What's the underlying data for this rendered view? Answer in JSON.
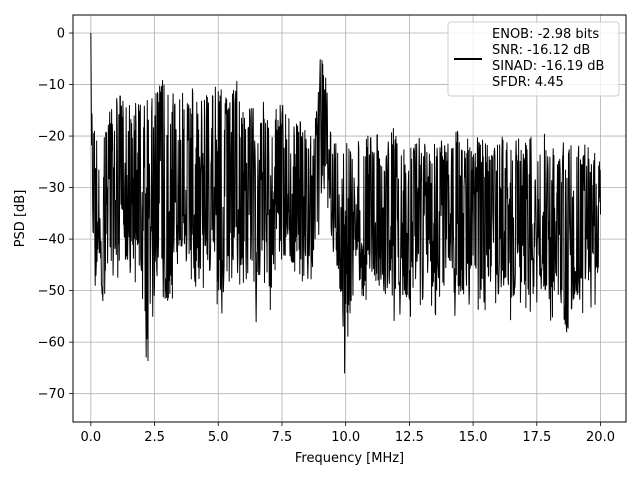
{
  "chart_data": {
    "type": "line",
    "xlabel": "Frequency [MHz]",
    "ylabel": "PSD [dB]",
    "xlim": [
      -0.7,
      21.0
    ],
    "ylim": [
      -75.5,
      3.5
    ],
    "x_ticks": [
      0.0,
      2.5,
      5.0,
      7.5,
      10.0,
      12.5,
      15.0,
      17.5,
      20.0
    ],
    "x_tick_labels": [
      "0.0",
      "2.5",
      "5.0",
      "7.5",
      "10.0",
      "12.5",
      "15.0",
      "17.5",
      "20.0"
    ],
    "y_ticks": [
      0,
      -10,
      -20,
      -30,
      -40,
      -50,
      -60,
      -70
    ],
    "y_tick_labels": [
      "0",
      "−10",
      "−20",
      "−30",
      "−40",
      "−50",
      "−60",
      "−70"
    ],
    "grid": true,
    "legend_position": "top-right",
    "line_color": "#000000",
    "legend": {
      "lines": [
        "ENOB: -2.98 bits",
        "SNR: -16.12 dB",
        "SINAD: -16.19 dB",
        "SFDR: 4.45"
      ]
    },
    "series": [
      {
        "x": [
          0.0,
          0.02,
          0.05,
          0.1,
          0.15,
          0.25,
          0.35,
          0.5,
          0.75,
          1.0,
          1.25,
          1.5,
          1.75,
          2.0,
          2.25,
          2.5,
          2.75,
          3.0,
          3.25,
          3.5,
          3.75,
          4.0,
          4.25,
          4.5,
          4.75,
          5.0,
          5.25,
          5.5,
          5.75,
          6.0,
          6.25,
          6.5,
          6.75,
          7.0,
          7.25,
          7.5,
          7.75,
          8.0,
          8.25,
          8.5,
          8.75,
          8.9,
          9.0,
          9.05,
          9.1,
          9.2,
          9.3,
          9.5,
          9.75,
          10.0,
          10.25,
          10.5,
          10.75,
          11.0,
          11.25,
          11.5,
          11.75,
          12.0,
          12.25,
          12.5,
          12.75,
          13.0,
          13.25,
          13.5,
          13.75,
          14.0,
          14.25,
          14.5,
          14.75,
          15.0,
          15.25,
          15.5,
          15.75,
          16.0,
          16.25,
          16.5,
          16.75,
          17.0,
          17.25,
          17.5,
          17.75,
          18.0,
          18.25,
          18.5,
          18.75,
          19.0,
          19.25,
          19.5,
          19.75,
          20.0
        ],
        "upper": [
          0,
          -9,
          -12,
          -15,
          -17,
          -20,
          -19,
          -18,
          -14,
          -11,
          -12,
          -12,
          -13,
          -14,
          -12,
          -12,
          -9,
          -9,
          -12,
          -11,
          -11,
          -10,
          -13,
          -9,
          -12,
          -9,
          -11,
          -12,
          -9,
          -16,
          -14,
          -15,
          -13,
          -16,
          -15,
          -13,
          -16,
          -16,
          -17,
          -18,
          -18,
          -14,
          -5,
          -4,
          -5,
          -8,
          -12,
          -21,
          -20,
          -20,
          -22,
          -21,
          -20,
          -20,
          -19,
          -22,
          -19,
          -18,
          -21,
          -22,
          -20,
          -20,
          -21,
          -21,
          -20,
          -21,
          -19,
          -18,
          -20,
          -21,
          -20,
          -21,
          -20,
          -19,
          -21,
          -21,
          -20,
          -20,
          -18,
          -21,
          -19,
          -20,
          -21,
          -21,
          -19,
          -20,
          -21,
          -20,
          -21,
          -22
        ],
        "lower": [
          -40,
          -41,
          -44,
          -49,
          -57,
          -52,
          -48,
          -60,
          -52,
          -50,
          -46,
          -53,
          -50,
          -55,
          -68,
          -56,
          -49,
          -60,
          -55,
          -45,
          -50,
          -55,
          -53,
          -48,
          -56,
          -54,
          -57,
          -47,
          -52,
          -55,
          -50,
          -57,
          -48,
          -55,
          -52,
          -51,
          -47,
          -53,
          -54,
          -48,
          -50,
          -45,
          -42,
          -38,
          -33,
          -36,
          -39,
          -47,
          -52,
          -70,
          -56,
          -52,
          -58,
          -51,
          -53,
          -55,
          -54,
          -57,
          -55,
          -56,
          -54,
          -53,
          -51,
          -55,
          -58,
          -53,
          -55,
          -57,
          -55,
          -54,
          -56,
          -59,
          -52,
          -55,
          -54,
          -57,
          -53,
          -55,
          -56,
          -54,
          -55,
          -57,
          -54,
          -60,
          -66,
          -56,
          -61,
          -52,
          -55,
          -48
        ]
      }
    ]
  }
}
